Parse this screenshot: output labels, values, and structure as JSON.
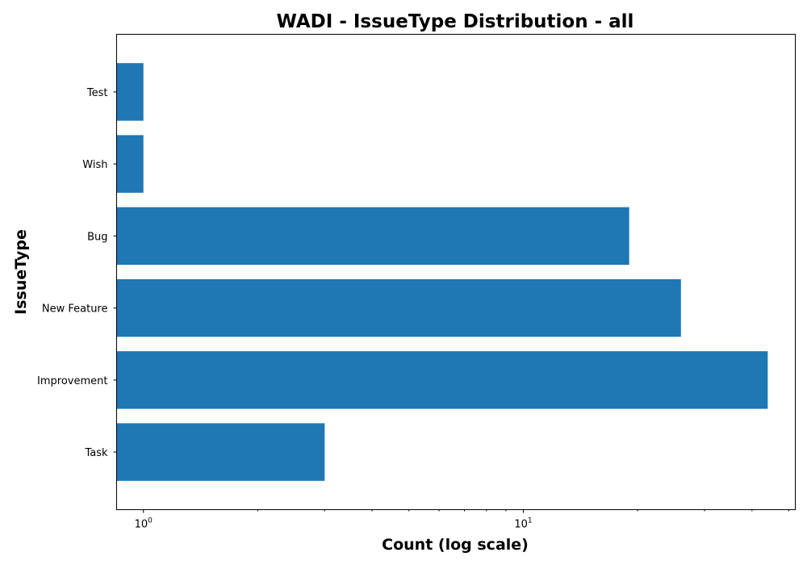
{
  "chart_data": {
    "type": "bar",
    "orientation": "horizontal",
    "title": "WADI - IssueType Distribution - all",
    "xlabel": "Count (log scale)",
    "ylabel": "IssueType",
    "xscale": "log",
    "xlim": [
      0.85,
      52
    ],
    "categories": [
      "Task",
      "Improvement",
      "New Feature",
      "Bug",
      "Wish",
      "Test"
    ],
    "values": [
      3,
      44,
      26,
      19,
      1,
      1
    ],
    "bar_color": "#1f77b4",
    "x_major_ticks": [
      1,
      10
    ],
    "x_major_tick_labels": [
      {
        "base": "10",
        "exp": "0"
      },
      {
        "base": "10",
        "exp": "1"
      }
    ],
    "grid": false,
    "legend": "none"
  }
}
